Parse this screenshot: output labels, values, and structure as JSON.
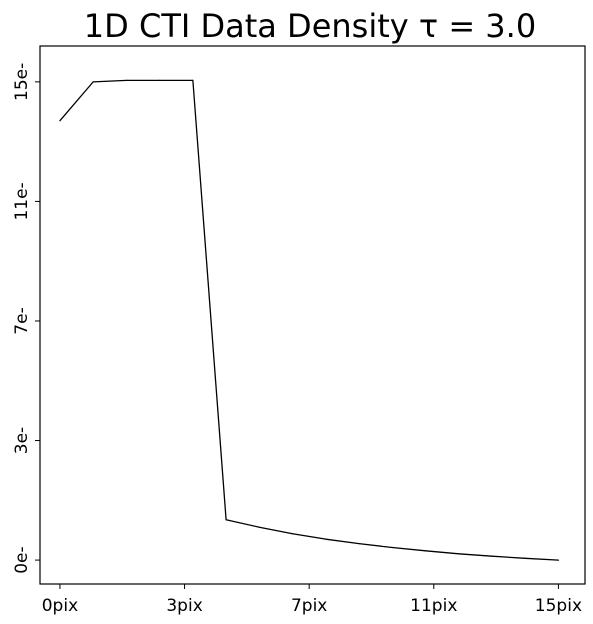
{
  "chart_data": {
    "type": "line",
    "title": "1D CTI Data Density τ = 3.0",
    "xlabel": "",
    "ylabel": "",
    "x": [
      0,
      1,
      2,
      3,
      4,
      5,
      6,
      7,
      8,
      9,
      10,
      11,
      12,
      13,
      14,
      15
    ],
    "series": [
      {
        "values": [
          14.7,
          16.0,
          16.05,
          16.05,
          16.05,
          1.35,
          1.1,
          0.88,
          0.7,
          0.55,
          0.42,
          0.31,
          0.21,
          0.13,
          0.06,
          0.0
        ]
      }
    ],
    "xlim": [
      -0.6,
      15.8
    ],
    "ylim": [
      -0.8,
      17.2
    ],
    "x_ticks": [
      {
        "value": 0,
        "label": "0pix"
      },
      {
        "value": 3.75,
        "label": "3pix"
      },
      {
        "value": 7.5,
        "label": "7pix"
      },
      {
        "value": 11.25,
        "label": "11pix"
      },
      {
        "value": 15,
        "label": "15pix"
      }
    ],
    "y_ticks": [
      {
        "value": 0,
        "label": "0e-"
      },
      {
        "value": 4,
        "label": "3e-"
      },
      {
        "value": 8,
        "label": "7e-"
      },
      {
        "value": 12,
        "label": "11e-"
      },
      {
        "value": 16,
        "label": "15e-"
      }
    ],
    "grid": false,
    "line_color": "#000000"
  }
}
